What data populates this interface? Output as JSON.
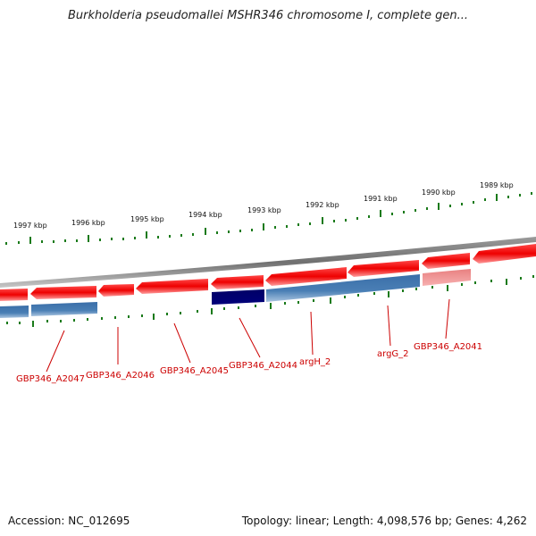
{
  "title": "Burkholderia pseudomallei MSHR346 chromosome I, complete gen...",
  "accession": "Accession: NC_012695",
  "summary": "Topology: linear; Length: 4,098,576 bp; Genes: 4,262",
  "ticks": [
    "1997 kbp",
    "1996 kbp",
    "1995 kbp",
    "1994 kbp",
    "1993 kbp",
    "1992 kbp",
    "1991 kbp",
    "1990 kbp",
    "1989 kbp"
  ],
  "genes": [
    "GBP346_A2047",
    "GBP346_A2046",
    "GBP346_A2045",
    "GBP346_A2044",
    "argH_2",
    "argG_2",
    "GBP346_A2041"
  ],
  "colors": {
    "backbone": "#7a7a7a",
    "forward_gene": "#ff0000",
    "cds": "#4a7fb5",
    "selected_cds": "#000080",
    "faded_gene": "#f08080",
    "tick": "#1a7a1a",
    "label": "#cc0000"
  }
}
